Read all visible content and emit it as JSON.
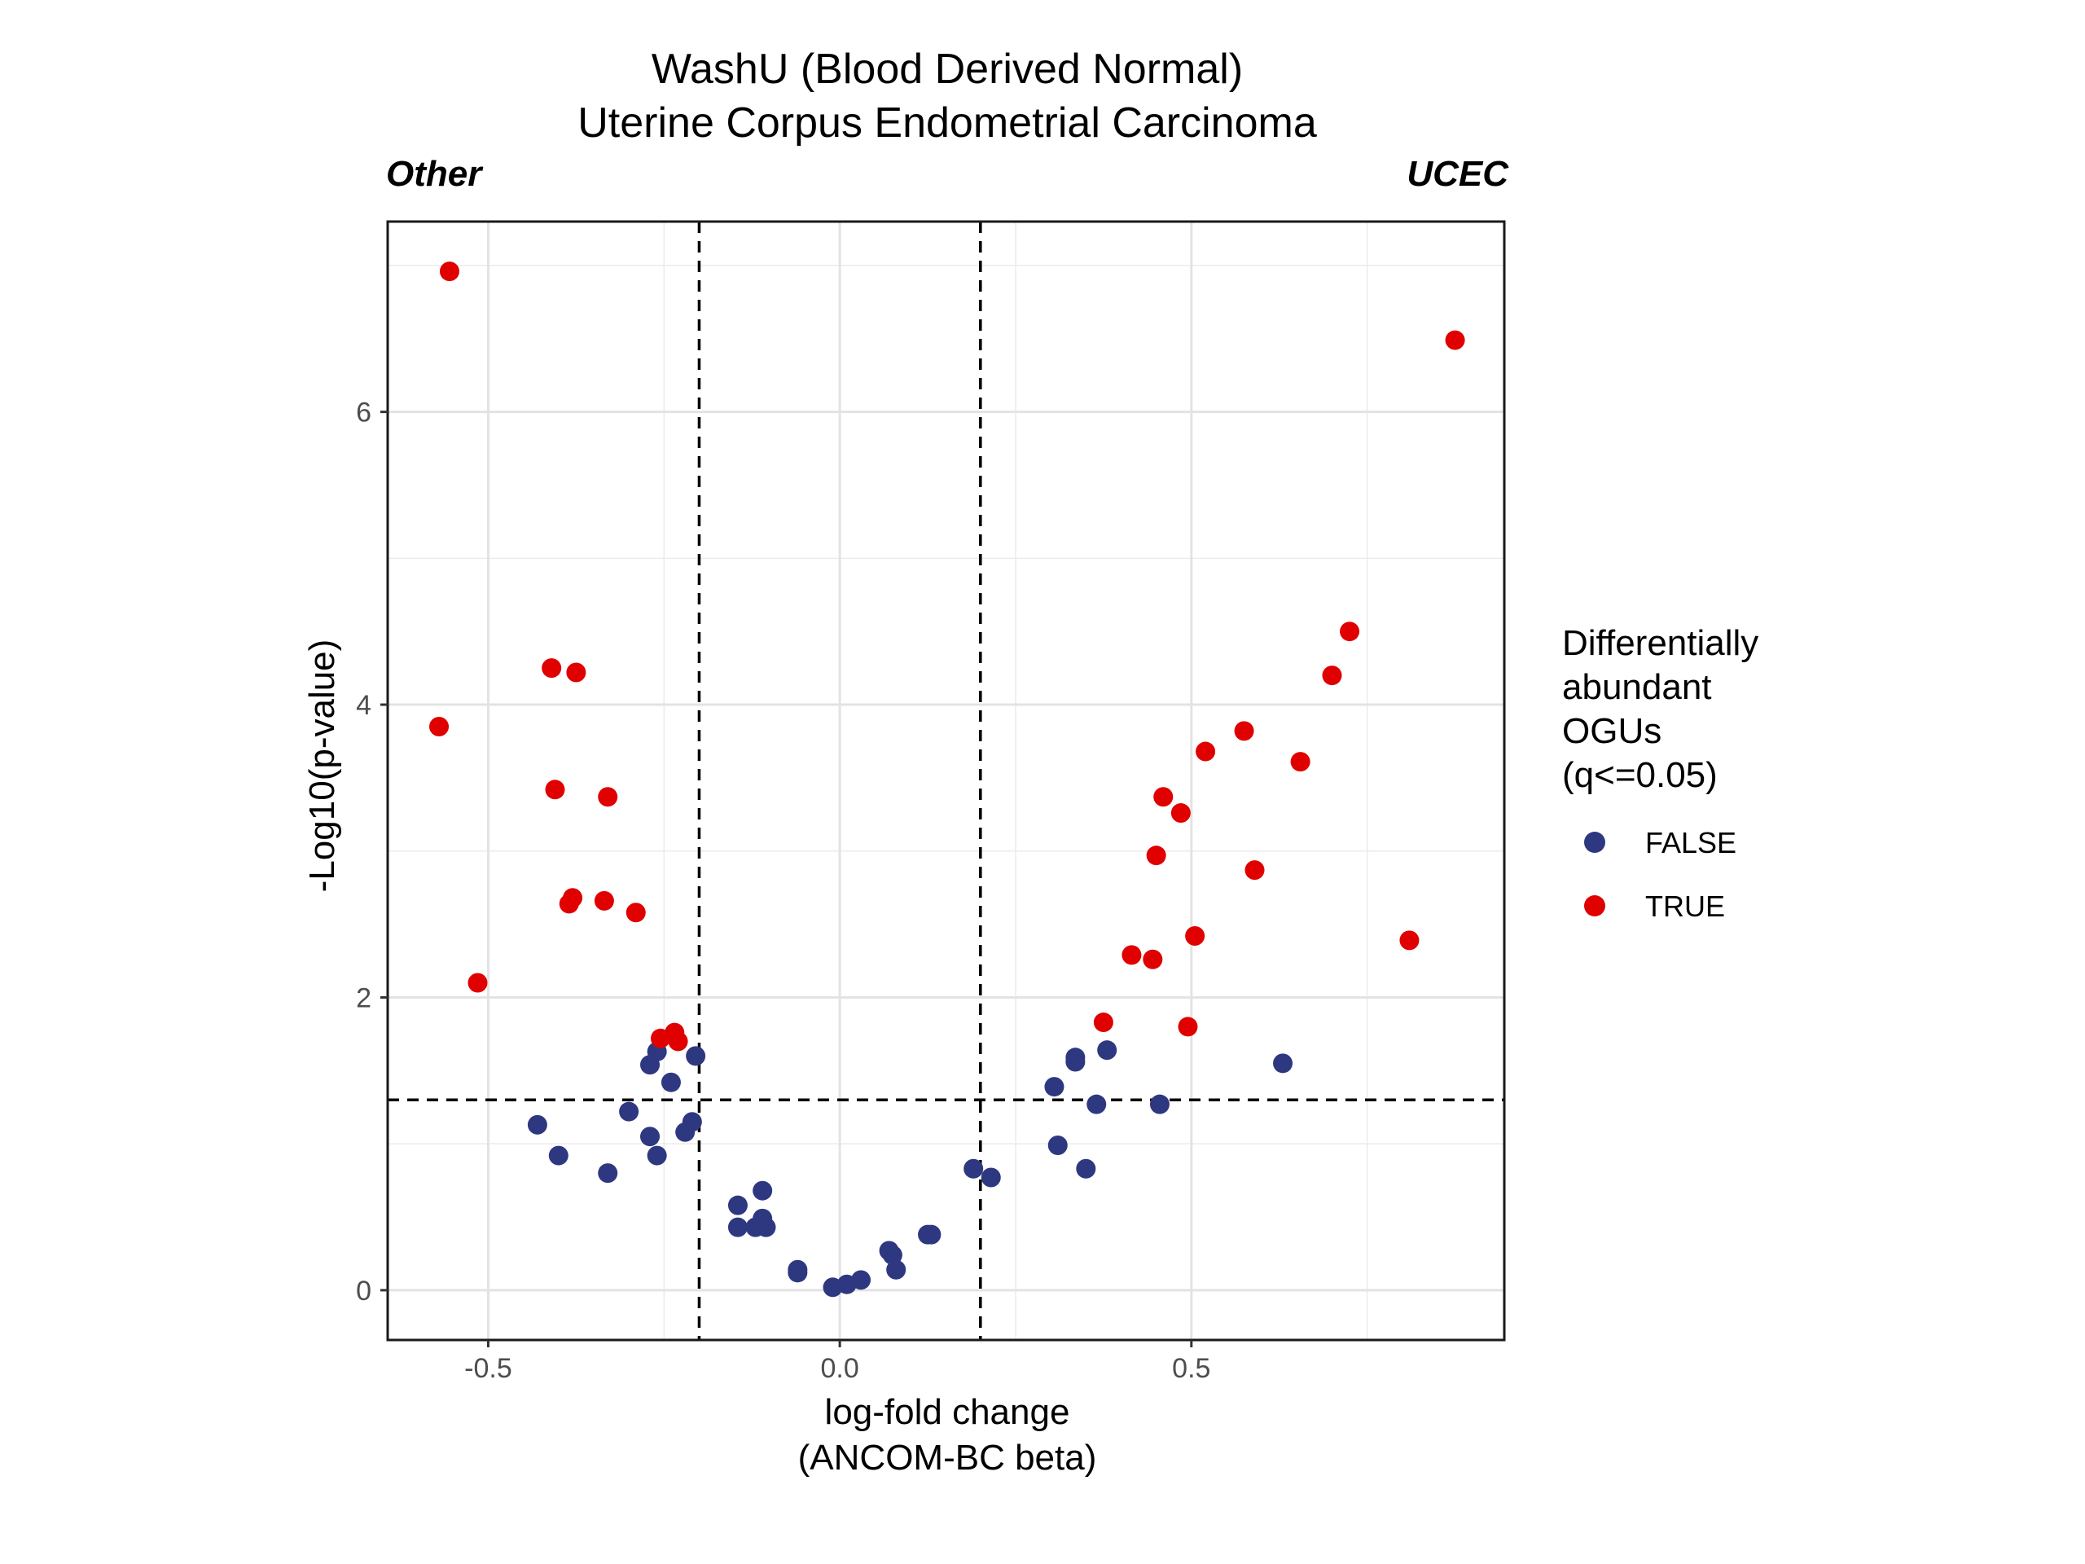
{
  "chart_data": {
    "type": "scatter",
    "title": [
      "WashU (Blood Derived Normal)",
      "Uterine Corpus Endometrial Carcinoma"
    ],
    "corner_labels": {
      "left": "Other",
      "right": "UCEC"
    },
    "xlabel": [
      "log-fold change",
      "(ANCOM-BC beta)"
    ],
    "ylabel": "-Log10(p-value)",
    "xlim": [
      -0.643,
      0.945
    ],
    "ylim": [
      -0.34,
      7.3
    ],
    "x_ticks": [
      -0.5,
      0.0,
      0.5
    ],
    "x_tick_labels": [
      "-0.5",
      "0.0",
      "0.5"
    ],
    "y_ticks": [
      0,
      2,
      4,
      6
    ],
    "y_tick_labels": [
      "0",
      "2",
      "4",
      "6"
    ],
    "grid": true,
    "reference_lines": {
      "vertical": [
        -0.2,
        0.2
      ],
      "horizontal": [
        1.3
      ],
      "style": "dashed"
    },
    "legend": {
      "title": [
        "Differentially",
        "abundant",
        "OGUs",
        "(q<=0.05)"
      ],
      "position": "right",
      "entries": [
        {
          "label": "FALSE",
          "color": "#2e3880"
        },
        {
          "label": "TRUE",
          "color": "#e00000"
        }
      ]
    },
    "series": [
      {
        "legend_label": "FALSE",
        "color": "#2e3880",
        "points": [
          [
            -0.43,
            1.13
          ],
          [
            -0.4,
            0.92
          ],
          [
            -0.33,
            0.8
          ],
          [
            -0.3,
            1.22
          ],
          [
            -0.27,
            1.05
          ],
          [
            -0.26,
            0.92
          ],
          [
            -0.27,
            1.54
          ],
          [
            -0.26,
            1.63
          ],
          [
            -0.24,
            1.42
          ],
          [
            -0.22,
            1.08
          ],
          [
            -0.21,
            1.15
          ],
          [
            -0.205,
            1.6
          ],
          [
            -0.145,
            0.58
          ],
          [
            -0.145,
            0.43
          ],
          [
            -0.12,
            0.43
          ],
          [
            -0.11,
            0.68
          ],
          [
            -0.11,
            0.49
          ],
          [
            -0.105,
            0.43
          ],
          [
            -0.06,
            0.14
          ],
          [
            -0.06,
            0.12
          ],
          [
            -0.01,
            0.02
          ],
          [
            0.01,
            0.04
          ],
          [
            0.03,
            0.07
          ],
          [
            0.07,
            0.27
          ],
          [
            0.075,
            0.24
          ],
          [
            0.08,
            0.14
          ],
          [
            0.125,
            0.38
          ],
          [
            0.13,
            0.38
          ],
          [
            0.19,
            0.83
          ],
          [
            0.215,
            0.77
          ],
          [
            0.305,
            1.39
          ],
          [
            0.31,
            0.99
          ],
          [
            0.335,
            1.59
          ],
          [
            0.335,
            1.56
          ],
          [
            0.35,
            0.83
          ],
          [
            0.365,
            1.27
          ],
          [
            0.38,
            1.64
          ],
          [
            0.455,
            1.27
          ],
          [
            0.63,
            1.55
          ]
        ]
      },
      {
        "legend_label": "TRUE",
        "color": "#e00000",
        "points": [
          [
            -0.555,
            6.96
          ],
          [
            -0.57,
            3.85
          ],
          [
            -0.515,
            2.1
          ],
          [
            -0.41,
            4.25
          ],
          [
            -0.375,
            4.22
          ],
          [
            -0.405,
            3.42
          ],
          [
            -0.33,
            3.37
          ],
          [
            -0.38,
            2.68
          ],
          [
            -0.385,
            2.64
          ],
          [
            -0.335,
            2.66
          ],
          [
            -0.29,
            2.58
          ],
          [
            -0.255,
            1.72
          ],
          [
            -0.235,
            1.76
          ],
          [
            -0.23,
            1.7
          ],
          [
            0.375,
            1.83
          ],
          [
            0.415,
            2.29
          ],
          [
            0.445,
            2.26
          ],
          [
            0.45,
            2.97
          ],
          [
            0.46,
            3.37
          ],
          [
            0.485,
            3.26
          ],
          [
            0.495,
            1.8
          ],
          [
            0.505,
            2.42
          ],
          [
            0.52,
            3.68
          ],
          [
            0.575,
            3.82
          ],
          [
            0.59,
            2.87
          ],
          [
            0.655,
            3.61
          ],
          [
            0.7,
            4.2
          ],
          [
            0.725,
            4.5
          ],
          [
            0.81,
            2.39
          ],
          [
            0.875,
            6.49
          ]
        ]
      }
    ]
  }
}
